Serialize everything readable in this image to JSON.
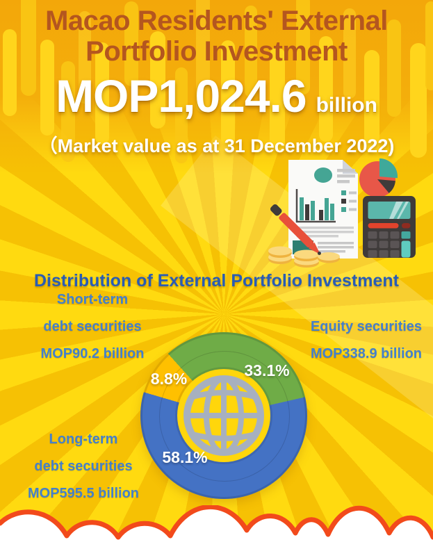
{
  "header": {
    "title_lines": [
      "Macao Residents' External",
      "Portfolio Investment"
    ],
    "amount_value": "MOP1,024.6",
    "amount_unit": "billion",
    "subtitle": "（Market value as at 31 December 2022)"
  },
  "section": {
    "heading": "Distribution of External Portfolio Investment"
  },
  "donut_labels": {
    "short_term": [
      "Short-term",
      "debt securities",
      "MOP90.2 billion"
    ],
    "equity": [
      "Equity securities",
      "MOP338.9 billion"
    ],
    "long_term": [
      "Long-term",
      "debt securities",
      "MOP595.5 billion"
    ]
  },
  "chart_data": {
    "type": "pie",
    "donut": true,
    "title": "Distribution of External Portfolio Investment",
    "total_label": "MOP1,024.6 billion",
    "as_of": "Market value as at 31 December 2022",
    "start_angle_deg": 318,
    "legend_position": "around-donut",
    "slices": [
      {
        "label": "Equity securities",
        "value_mop_billion": 338.9,
        "value_label": "MOP338.9 billion",
        "percent": 33.1,
        "percent_label": "33.1%",
        "color": "#6FAC47"
      },
      {
        "label": "Long-term debt securities",
        "value_mop_billion": 595.5,
        "value_label": "MOP595.5 billion",
        "percent": 58.1,
        "percent_label": "58.1%",
        "color": "#4472C4"
      },
      {
        "label": "Short-term debt securities",
        "value_mop_billion": 90.2,
        "value_label": "MOP90.2 billion",
        "percent": 8.8,
        "percent_label": "8.8%",
        "color": "#FFC000"
      }
    ]
  },
  "colors": {
    "title": "#B4561F",
    "heading": "#2A5CB4",
    "label_blue": "#4580CA",
    "wave": "#F24A1B",
    "background_yellow": "#FFD60B",
    "top_orange": "#F3A70A",
    "globe_gray": "#A7B0BF"
  },
  "icons": {
    "center": "globe-icon",
    "illustration": [
      "document-icon",
      "pie-chart-icon",
      "calculator-icon",
      "pen-icon",
      "coins-icon"
    ]
  }
}
